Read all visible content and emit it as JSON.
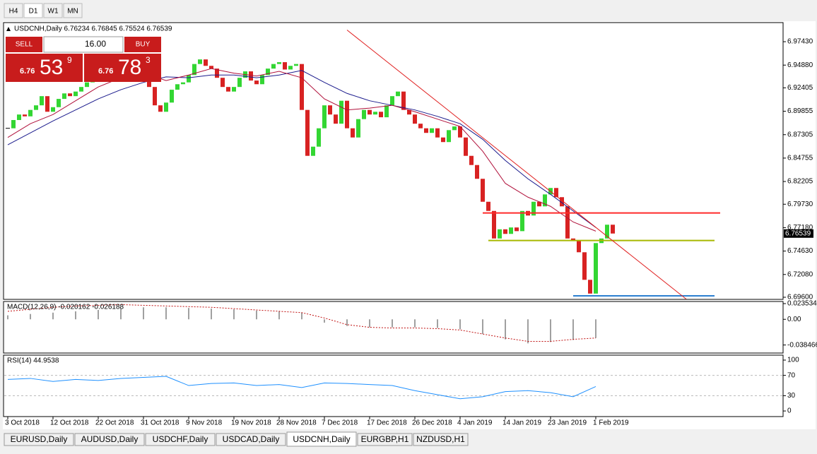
{
  "toolbar": {
    "timeframes": [
      "H4",
      "D1",
      "W1",
      "MN"
    ]
  },
  "chart_data": [
    {
      "type": "candlestick",
      "title": "USDCNH,Daily 6.76234 6.76845 6.75524 6.76539",
      "closes": [
        6.88,
        6.889,
        6.895,
        6.893,
        6.9,
        6.905,
        6.915,
        6.898,
        6.903,
        6.912,
        6.918,
        6.915,
        6.92,
        6.925,
        6.93,
        6.935,
        6.94,
        6.945,
        6.942,
        6.948,
        6.95,
        6.946,
        6.944,
        6.942,
        6.938,
        6.925,
        6.905,
        6.898,
        6.908,
        6.922,
        6.928,
        6.93,
        6.938,
        6.95,
        6.955,
        6.948,
        6.945,
        6.935,
        6.925,
        6.92,
        6.925,
        6.935,
        6.942,
        6.932,
        6.928,
        6.938,
        6.945,
        6.95,
        6.952,
        6.944,
        6.948,
        6.95,
        6.9,
        6.85,
        6.86,
        6.88,
        6.905,
        6.895,
        6.885,
        6.91,
        6.88,
        6.87,
        6.89,
        6.9,
        6.895,
        6.898,
        6.892,
        6.905,
        6.915,
        6.92,
        6.9,
        6.895,
        6.885,
        6.88,
        6.875,
        6.88,
        6.87,
        6.865,
        6.878,
        6.882,
        6.87,
        6.85,
        6.84,
        6.825,
        6.8,
        6.79,
        6.76,
        6.77,
        6.765,
        6.772,
        6.768,
        6.79,
        6.785,
        6.8,
        6.795,
        6.808,
        6.815,
        6.805,
        6.795,
        6.76,
        6.758,
        6.745,
        6.715,
        6.7,
        6.755,
        6.76,
        6.775,
        6.7654
      ],
      "up_color": "#33d633",
      "down_color": "#d82222",
      "ma": [
        {
          "color": "#1a1a8c",
          "x": [
            0,
            4,
            8,
            12,
            16,
            20,
            24,
            28,
            32,
            36,
            40,
            44,
            48,
            52,
            56,
            60,
            64,
            68,
            72,
            76,
            80,
            84,
            88,
            92,
            96,
            100,
            104
          ],
          "values": [
            6.862,
            6.875,
            6.888,
            6.9,
            6.912,
            6.922,
            6.93,
            6.936,
            6.935,
            6.938,
            6.938,
            6.935,
            6.938,
            6.943,
            6.93,
            6.918,
            6.91,
            6.905,
            6.9,
            6.893,
            6.885,
            6.868,
            6.845,
            6.825,
            6.808,
            6.79,
            6.772
          ]
        },
        {
          "color": "#b0103a",
          "x": [
            0,
            4,
            8,
            12,
            16,
            20,
            24,
            28,
            32,
            36,
            40,
            44,
            48,
            52,
            56,
            60,
            64,
            68,
            72,
            76,
            80,
            84,
            88,
            92,
            96,
            100,
            104
          ],
          "values": [
            6.87,
            6.885,
            6.895,
            6.91,
            6.925,
            6.935,
            6.94,
            6.932,
            6.938,
            6.945,
            6.94,
            6.937,
            6.942,
            6.935,
            6.912,
            6.9,
            6.902,
            6.905,
            6.898,
            6.89,
            6.882,
            6.855,
            6.82,
            6.805,
            6.795,
            6.778,
            6.768
          ]
        }
      ],
      "levels": [
        {
          "value": 6.7878,
          "color": "#ff2a2a",
          "x": [
            84,
            126
          ]
        },
        {
          "value": 6.7578,
          "color": "#a8b800",
          "x": [
            85,
            125
          ]
        },
        {
          "value": 6.6975,
          "color": "#2b7fd0",
          "x": [
            100,
            125
          ]
        }
      ],
      "trendline": {
        "color": "#e02020",
        "x": [
          60,
          120
        ],
        "values": [
          6.987,
          6.694
        ]
      },
      "last": 6.76539,
      "ylim": [
        6.6937,
        6.9951
      ],
      "yticks": [
        {
          "value": 6.9743,
          "label": "6.97430"
        },
        {
          "value": 6.9488,
          "label": "6.94880"
        },
        {
          "value": 6.92405,
          "label": "6.92405"
        },
        {
          "value": 6.89855,
          "label": "6.89855"
        },
        {
          "value": 6.87305,
          "label": "6.87305"
        },
        {
          "value": 6.84755,
          "label": "6.84755"
        },
        {
          "value": 6.82205,
          "label": "6.82205"
        },
        {
          "value": 6.7973,
          "label": "6.79730"
        },
        {
          "value": 6.7718,
          "label": "6.77180"
        },
        {
          "value": 6.7463,
          "label": "6.74630"
        },
        {
          "value": 6.7208,
          "label": "6.72080"
        },
        {
          "value": 6.696,
          "label": "6.69600"
        }
      ],
      "dates": [
        "3 Oct 2018",
        "12 Oct 2018",
        "22 Oct 2018",
        "31 Oct 2018",
        "9 Nov 2018",
        "19 Nov 2018",
        "28 Nov 2018",
        "7 Dec 2018",
        "17 Dec 2018",
        "26 Dec 2018",
        "4 Jan 2019",
        "14 Jan 2019",
        "23 Jan 2019",
        "1 Feb 2019"
      ]
    },
    {
      "type": "macd",
      "title": "MACD(12,26,9) -0.020162 -0.026188",
      "x": [
        0,
        4,
        8,
        12,
        16,
        20,
        24,
        28,
        32,
        36,
        40,
        44,
        48,
        52,
        56,
        60,
        64,
        68,
        72,
        76,
        80,
        84,
        88,
        92,
        96,
        100,
        104
      ],
      "histogram": [
        0.006,
        0.008,
        0.01,
        0.012,
        0.014,
        0.016,
        0.018,
        0.018,
        0.017,
        0.016,
        0.015,
        0.013,
        0.012,
        0.01,
        -0.005,
        -0.01,
        -0.012,
        -0.012,
        -0.012,
        -0.013,
        -0.015,
        -0.022,
        -0.03,
        -0.036,
        -0.034,
        -0.031,
        -0.028
      ],
      "signal": [
        0.012,
        0.015,
        0.018,
        0.02,
        0.021,
        0.022,
        0.021,
        0.02,
        0.019,
        0.018,
        0.016,
        0.014,
        0.012,
        0.01,
        0.002,
        -0.008,
        -0.012,
        -0.013,
        -0.013,
        -0.014,
        -0.016,
        -0.022,
        -0.028,
        -0.033,
        -0.033,
        -0.03,
        -0.028
      ],
      "hist_color": "#a0a0a0",
      "signal_color": "#c01010",
      "ylim": [
        -0.0505,
        0.0267
      ],
      "yticks": [
        0.023534,
        {
          "value": 0,
          "label": "0.00"
        },
        -0.038466
      ]
    },
    {
      "type": "line",
      "title": "RSI(14) 44.9538",
      "x": [
        0,
        4,
        8,
        12,
        16,
        20,
        24,
        28,
        32,
        36,
        40,
        44,
        48,
        52,
        56,
        60,
        64,
        68,
        72,
        76,
        80,
        84,
        88,
        92,
        96,
        100,
        104
      ],
      "values": [
        62,
        64,
        58,
        62,
        60,
        64,
        66,
        68,
        50,
        54,
        55,
        50,
        52,
        46,
        55,
        54,
        52,
        50,
        40,
        32,
        24,
        28,
        38,
        40,
        36,
        28,
        48
      ],
      "color": "#1e90ff",
      "levels": [
        70,
        30
      ],
      "ylim": [
        -11,
        109.7
      ],
      "yticks": [
        100,
        70,
        30,
        0
      ]
    }
  ],
  "trade_panel": {
    "sell": "SELL",
    "buy": "BUY",
    "volume": "16.00",
    "bid": {
      "prefix": "6.76",
      "big": "53",
      "small": "9"
    },
    "ask": {
      "prefix": "6.76",
      "big": "78",
      "small": "3"
    }
  },
  "tabs": [
    "EURUSD,Daily",
    "AUDUSD,Daily",
    "USDCHF,Daily",
    "USDCAD,Daily",
    "USDCNH,Daily",
    "EURGBP,H1",
    "NZDUSD,H1"
  ]
}
